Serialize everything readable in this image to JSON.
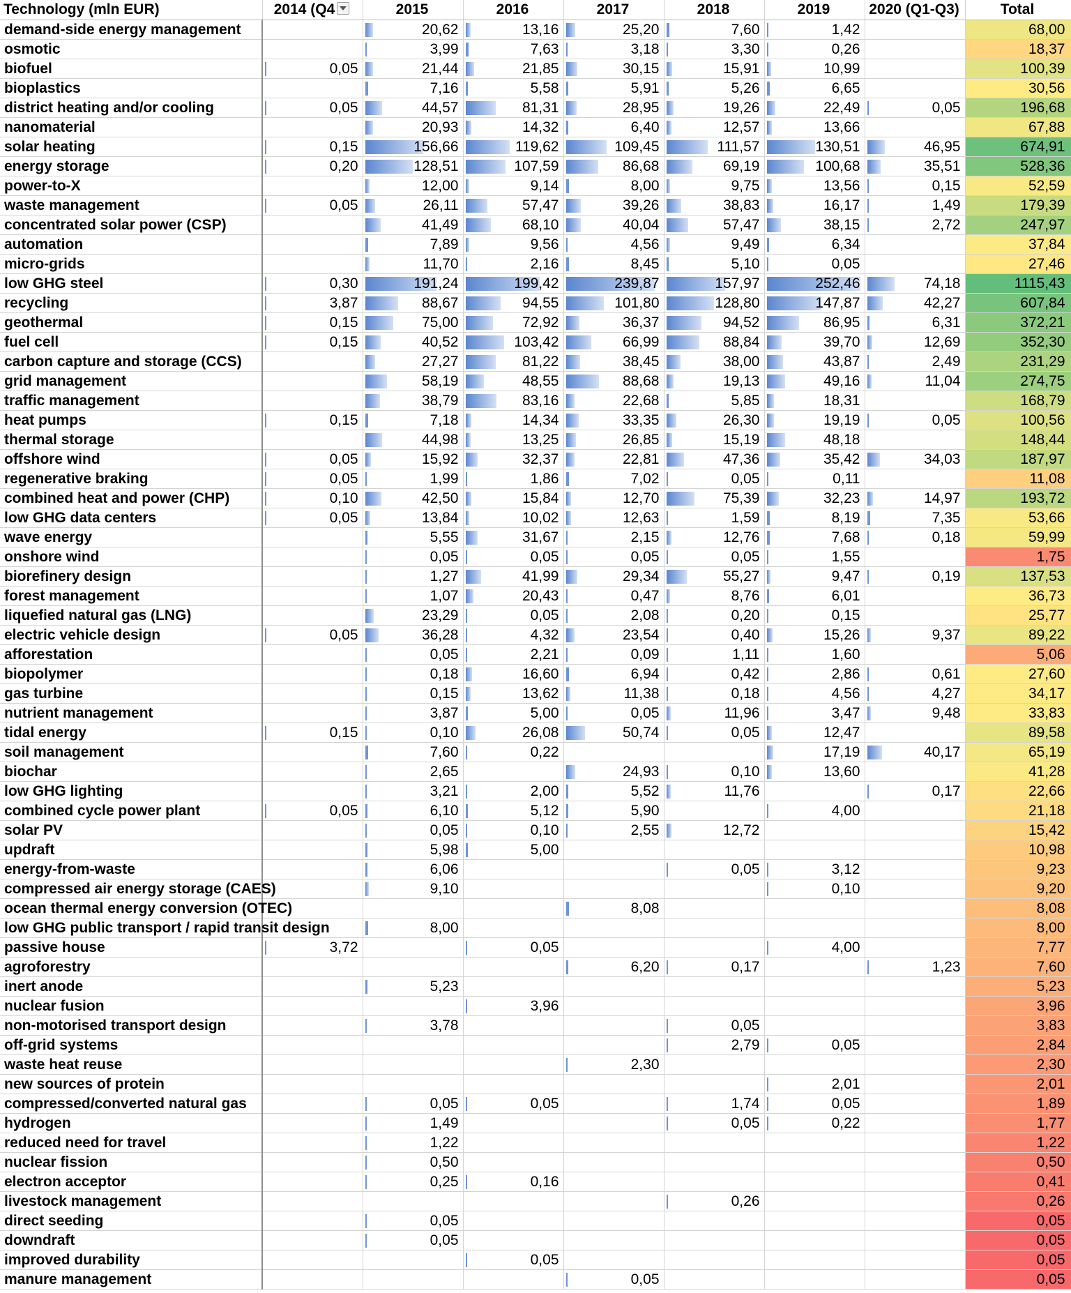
{
  "headers": [
    "Technology (mln EUR)",
    "2014 (Q4",
    "2015",
    "2016",
    "2017",
    "2018",
    "2019",
    "2020 (Q1-Q3)",
    "Total"
  ],
  "colors": {
    "bar_start": "#5a86d0",
    "bar_end": "#d4e0f4",
    "scale_low": "#f8696b",
    "scale_mid": "#ffeb84",
    "scale_high": "#63be7b",
    "grid": "#d4d4d4"
  },
  "rows": [
    {
      "tech": "demand-side energy management",
      "v": [
        "",
        "20,62",
        "13,16",
        "25,20",
        "7,60",
        "1,42",
        ""
      ],
      "total": "68,00"
    },
    {
      "tech": "osmotic",
      "v": [
        "",
        "3,99",
        "7,63",
        "3,18",
        "3,30",
        "0,26",
        ""
      ],
      "total": "18,37"
    },
    {
      "tech": "biofuel",
      "v": [
        "0,05",
        "21,44",
        "21,85",
        "30,15",
        "15,91",
        "10,99",
        ""
      ],
      "total": "100,39"
    },
    {
      "tech": "bioplastics",
      "v": [
        "",
        "7,16",
        "5,58",
        "5,91",
        "5,26",
        "6,65",
        ""
      ],
      "total": "30,56"
    },
    {
      "tech": "district heating and/or cooling",
      "v": [
        "0,05",
        "44,57",
        "81,31",
        "28,95",
        "19,26",
        "22,49",
        "0,05"
      ],
      "total": "196,68"
    },
    {
      "tech": "nanomaterial",
      "v": [
        "",
        "20,93",
        "14,32",
        "6,40",
        "12,57",
        "13,66",
        ""
      ],
      "total": "67,88"
    },
    {
      "tech": "solar heating",
      "v": [
        "0,15",
        "156,66",
        "119,62",
        "109,45",
        "111,57",
        "130,51",
        "46,95"
      ],
      "total": "674,91"
    },
    {
      "tech": "energy storage",
      "v": [
        "0,20",
        "128,51",
        "107,59",
        "86,68",
        "69,19",
        "100,68",
        "35,51"
      ],
      "total": "528,36"
    },
    {
      "tech": "power-to-X",
      "v": [
        "",
        "12,00",
        "9,14",
        "8,00",
        "9,75",
        "13,56",
        "0,15"
      ],
      "total": "52,59"
    },
    {
      "tech": "waste management",
      "v": [
        "0,05",
        "26,11",
        "57,47",
        "39,26",
        "38,83",
        "16,17",
        "1,49"
      ],
      "total": "179,39"
    },
    {
      "tech": "concentrated solar power (CSP)",
      "v": [
        "",
        "41,49",
        "68,10",
        "40,04",
        "57,47",
        "38,15",
        "2,72"
      ],
      "total": "247,97"
    },
    {
      "tech": "automation",
      "v": [
        "",
        "7,89",
        "9,56",
        "4,56",
        "9,49",
        "6,34",
        ""
      ],
      "total": "37,84"
    },
    {
      "tech": "micro-grids",
      "v": [
        "",
        "11,70",
        "2,16",
        "8,45",
        "5,10",
        "0,05",
        ""
      ],
      "total": "27,46"
    },
    {
      "tech": "low GHG steel",
      "v": [
        "0,30",
        "191,24",
        "199,42",
        "239,87",
        "157,97",
        "252,46",
        "74,18"
      ],
      "total": "1115,43"
    },
    {
      "tech": "recycling",
      "v": [
        "3,87",
        "88,67",
        "94,55",
        "101,80",
        "128,80",
        "147,87",
        "42,27"
      ],
      "total": "607,84"
    },
    {
      "tech": "geothermal",
      "v": [
        "0,15",
        "75,00",
        "72,92",
        "36,37",
        "94,52",
        "86,95",
        "6,31"
      ],
      "total": "372,21"
    },
    {
      "tech": "fuel cell",
      "v": [
        "0,15",
        "40,52",
        "103,42",
        "66,99",
        "88,84",
        "39,70",
        "12,69"
      ],
      "total": "352,30"
    },
    {
      "tech": "carbon capture and storage (CCS)",
      "v": [
        "",
        "27,27",
        "81,22",
        "38,45",
        "38,00",
        "43,87",
        "2,49"
      ],
      "total": "231,29"
    },
    {
      "tech": "grid management",
      "v": [
        "",
        "58,19",
        "48,55",
        "88,68",
        "19,13",
        "49,16",
        "11,04"
      ],
      "total": "274,75"
    },
    {
      "tech": "traffic management",
      "v": [
        "",
        "38,79",
        "83,16",
        "22,68",
        "5,85",
        "18,31",
        ""
      ],
      "total": "168,79"
    },
    {
      "tech": "heat pumps",
      "v": [
        "0,15",
        "7,18",
        "14,34",
        "33,35",
        "26,30",
        "19,19",
        "0,05"
      ],
      "total": "100,56"
    },
    {
      "tech": "thermal storage",
      "v": [
        "",
        "44,98",
        "13,25",
        "26,85",
        "15,19",
        "48,18",
        ""
      ],
      "total": "148,44"
    },
    {
      "tech": "offshore wind",
      "v": [
        "0,05",
        "15,92",
        "32,37",
        "22,81",
        "47,36",
        "35,42",
        "34,03"
      ],
      "total": "187,97"
    },
    {
      "tech": "regenerative braking",
      "v": [
        "0,05",
        "1,99",
        "1,86",
        "7,02",
        "0,05",
        "0,11",
        ""
      ],
      "total": "11,08"
    },
    {
      "tech": "combined heat and power (CHP)",
      "v": [
        "0,10",
        "42,50",
        "15,84",
        "12,70",
        "75,39",
        "32,23",
        "14,97"
      ],
      "total": "193,72"
    },
    {
      "tech": "low GHG data centers",
      "v": [
        "0,05",
        "13,84",
        "10,02",
        "12,63",
        "1,59",
        "8,19",
        "7,35"
      ],
      "total": "53,66"
    },
    {
      "tech": "wave energy",
      "v": [
        "",
        "5,55",
        "31,67",
        "2,15",
        "12,76",
        "7,68",
        "0,18"
      ],
      "total": "59,99"
    },
    {
      "tech": "onshore wind",
      "v": [
        "",
        "0,05",
        "0,05",
        "0,05",
        "0,05",
        "1,55",
        ""
      ],
      "total": "1,75"
    },
    {
      "tech": "biorefinery design",
      "v": [
        "",
        "1,27",
        "41,99",
        "29,34",
        "55,27",
        "9,47",
        "0,19"
      ],
      "total": "137,53"
    },
    {
      "tech": "forest management",
      "v": [
        "",
        "1,07",
        "20,43",
        "0,47",
        "8,76",
        "6,01",
        ""
      ],
      "total": "36,73"
    },
    {
      "tech": "liquefied natural gas (LNG)",
      "v": [
        "",
        "23,29",
        "0,05",
        "2,08",
        "0,20",
        "0,15",
        ""
      ],
      "total": "25,77"
    },
    {
      "tech": "electric vehicle design",
      "v": [
        "0,05",
        "36,28",
        "4,32",
        "23,54",
        "0,40",
        "15,26",
        "9,37"
      ],
      "total": "89,22"
    },
    {
      "tech": "afforestation",
      "v": [
        "",
        "0,05",
        "2,21",
        "0,09",
        "1,11",
        "1,60",
        ""
      ],
      "total": "5,06"
    },
    {
      "tech": "biopolymer",
      "v": [
        "",
        "0,18",
        "16,60",
        "6,94",
        "0,42",
        "2,86",
        "0,61"
      ],
      "total": "27,60"
    },
    {
      "tech": "gas turbine",
      "v": [
        "",
        "0,15",
        "13,62",
        "11,38",
        "0,18",
        "4,56",
        "4,27"
      ],
      "total": "34,17"
    },
    {
      "tech": "nutrient management",
      "v": [
        "",
        "3,87",
        "5,00",
        "0,05",
        "11,96",
        "3,47",
        "9,48"
      ],
      "total": "33,83"
    },
    {
      "tech": "tidal energy",
      "v": [
        "0,15",
        "0,10",
        "26,08",
        "50,74",
        "0,05",
        "12,47",
        ""
      ],
      "total": "89,58"
    },
    {
      "tech": "soil management",
      "v": [
        "",
        "7,60",
        "0,22",
        "",
        "",
        "17,19",
        "40,17"
      ],
      "total": "65,19"
    },
    {
      "tech": "biochar",
      "v": [
        "",
        "2,65",
        "",
        "24,93",
        "0,10",
        "13,60",
        ""
      ],
      "total": "41,28"
    },
    {
      "tech": "low GHG lighting",
      "v": [
        "",
        "3,21",
        "2,00",
        "5,52",
        "11,76",
        "",
        "0,17"
      ],
      "total": "22,66"
    },
    {
      "tech": "combined cycle power plant",
      "v": [
        "0,05",
        "6,10",
        "5,12",
        "5,90",
        "",
        "4,00",
        ""
      ],
      "total": "21,18"
    },
    {
      "tech": "solar PV",
      "v": [
        "",
        "0,05",
        "0,10",
        "2,55",
        "12,72",
        "",
        ""
      ],
      "total": "15,42"
    },
    {
      "tech": "updraft",
      "v": [
        "",
        "5,98",
        "5,00",
        "",
        "",
        "",
        ""
      ],
      "total": "10,98"
    },
    {
      "tech": "energy-from-waste",
      "v": [
        "",
        "6,06",
        "",
        "",
        "0,05",
        "3,12",
        ""
      ],
      "total": "9,23"
    },
    {
      "tech": "compressed air energy storage (CAES)",
      "v": [
        "",
        "9,10",
        "",
        "",
        "",
        "0,10",
        ""
      ],
      "total": "9,20"
    },
    {
      "tech": "ocean thermal energy conversion (OTEC)",
      "v": [
        "",
        "",
        "",
        "8,08",
        "",
        "",
        ""
      ],
      "total": "8,08"
    },
    {
      "tech": "low GHG public transport / rapid transit design",
      "v": [
        "",
        "8,00",
        "",
        "",
        "",
        "",
        ""
      ],
      "total": "8,00"
    },
    {
      "tech": "passive house",
      "v": [
        "3,72",
        "",
        "0,05",
        "",
        "",
        "4,00",
        ""
      ],
      "total": "7,77"
    },
    {
      "tech": "agroforestry",
      "v": [
        "",
        "",
        "",
        "6,20",
        "0,17",
        "",
        "1,23"
      ],
      "total": "7,60"
    },
    {
      "tech": "inert anode",
      "v": [
        "",
        "5,23",
        "",
        "",
        "",
        "",
        ""
      ],
      "total": "5,23"
    },
    {
      "tech": "nuclear fusion",
      "v": [
        "",
        "",
        "3,96",
        "",
        "",
        "",
        ""
      ],
      "total": "3,96"
    },
    {
      "tech": "non-motorised transport design",
      "v": [
        "",
        "3,78",
        "",
        "",
        "0,05",
        "",
        ""
      ],
      "total": "3,83"
    },
    {
      "tech": "off-grid systems",
      "v": [
        "",
        "",
        "",
        "",
        "2,79",
        "0,05",
        ""
      ],
      "total": "2,84"
    },
    {
      "tech": "waste heat reuse",
      "v": [
        "",
        "",
        "",
        "2,30",
        "",
        "",
        ""
      ],
      "total": "2,30"
    },
    {
      "tech": "new sources of protein",
      "v": [
        "",
        "",
        "",
        "",
        "",
        "2,01",
        ""
      ],
      "total": "2,01"
    },
    {
      "tech": "compressed/converted natural gas",
      "v": [
        "",
        "0,05",
        "0,05",
        "",
        "1,74",
        "0,05",
        ""
      ],
      "total": "1,89"
    },
    {
      "tech": "hydrogen",
      "v": [
        "",
        "1,49",
        "",
        "",
        "0,05",
        "0,22",
        ""
      ],
      "total": "1,77"
    },
    {
      "tech": "reduced need for travel",
      "v": [
        "",
        "1,22",
        "",
        "",
        "",
        "",
        ""
      ],
      "total": "1,22"
    },
    {
      "tech": "nuclear fission",
      "v": [
        "",
        "0,50",
        "",
        "",
        "",
        "",
        ""
      ],
      "total": "0,50"
    },
    {
      "tech": "electron acceptor",
      "v": [
        "",
        "0,25",
        "0,16",
        "",
        "",
        "",
        ""
      ],
      "total": "0,41"
    },
    {
      "tech": "livestock management",
      "v": [
        "",
        "",
        "",
        "",
        "0,26",
        "",
        ""
      ],
      "total": "0,26"
    },
    {
      "tech": "direct seeding",
      "v": [
        "",
        "0,05",
        "",
        "",
        "",
        "",
        ""
      ],
      "total": "0,05"
    },
    {
      "tech": "downdraft",
      "v": [
        "",
        "0,05",
        "",
        "",
        "",
        "",
        ""
      ],
      "total": "0,05"
    },
    {
      "tech": "improved durability",
      "v": [
        "",
        "",
        "0,05",
        "",
        "",
        "",
        ""
      ],
      "total": "0,05"
    },
    {
      "tech": "manure management",
      "v": [
        "",
        "",
        "",
        "0,05",
        "",
        "",
        ""
      ],
      "total": "0,05"
    }
  ]
}
